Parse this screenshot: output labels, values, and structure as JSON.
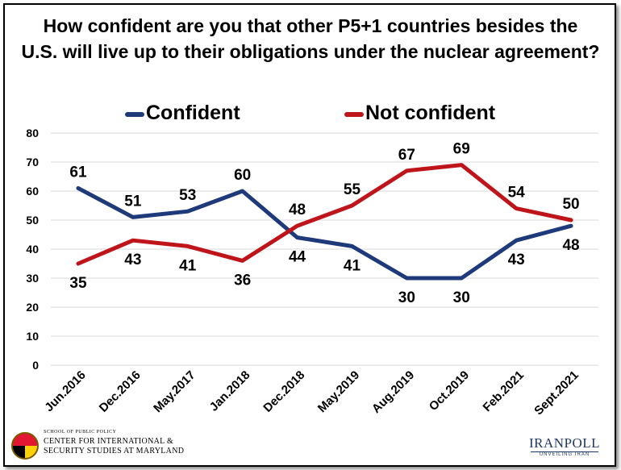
{
  "chart_data": {
    "type": "line",
    "title": "How confident are you that other P5+1 countries besides the U.S. will live up to their obligations under the nuclear agreement?",
    "title_lines": [
      "How confident are you that other P5+1 countries besides the",
      "U.S. will live up to their obligations under the nuclear agreement?"
    ],
    "categories": [
      "Jun.2016",
      "Dec.2016",
      "May.2017",
      "Jan.2018",
      "Dec.2018",
      "May.2019",
      "Aug.2019",
      "Oct.2019",
      "Feb.2021",
      "Sept.2021"
    ],
    "ylim": [
      0,
      80
    ],
    "yticks": [
      0,
      10,
      20,
      30,
      40,
      50,
      60,
      70,
      80
    ],
    "grid": true,
    "legend_position": "top",
    "series": [
      {
        "name": "Confident",
        "color": "#1f3a7a",
        "values": [
          61,
          51,
          53,
          60,
          44,
          41,
          30,
          30,
          43,
          48
        ]
      },
      {
        "name": "Not confident",
        "color": "#c0141b",
        "values": [
          35,
          43,
          41,
          36,
          48,
          55,
          67,
          69,
          54,
          50
        ]
      }
    ]
  },
  "logos": {
    "left_small": "SCHOOL OF PUBLIC POLICY",
    "left_line1": "CENTER FOR INTERNATIONAL &",
    "left_line2": "SECURITY STUDIES AT MARYLAND",
    "right_name": "IRANPOLL",
    "right_tag": "UNVEILING IRAN"
  }
}
